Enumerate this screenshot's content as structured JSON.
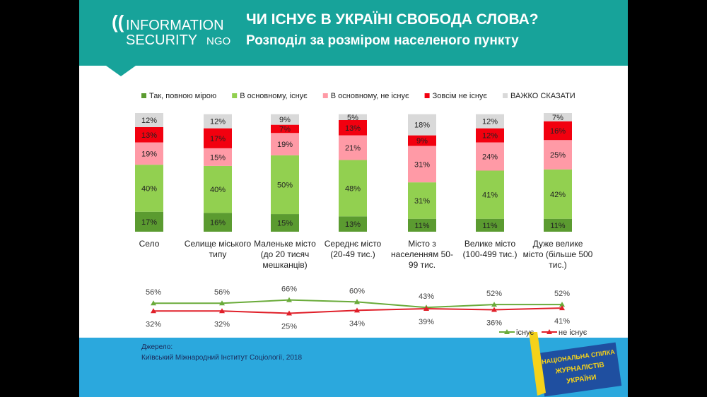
{
  "header": {
    "title": "ЧИ ІСНУЄ В УКРАЇНІ СВОБОДА СЛОВА?",
    "subtitle": "Розподіл за розміром населеного пункту"
  },
  "logo": {
    "line1": "INFORMATION",
    "line2": "SECURITY",
    "tag": "NGO"
  },
  "chart_data": [
    {
      "type": "stacked-bar",
      "categories": [
        "Село",
        "Селище міського типу",
        "Маленьке місто (до 20 тисяч мешканців)",
        "Середнє місто (20-49 тис.)",
        "Місто з населенням 50-99 тис.",
        "Велике місто (100-499 тис.)",
        "Дуже велике місто (більше 500 тис.)"
      ],
      "ylim": [
        0,
        101
      ],
      "series": [
        {
          "name": "Так, повною мірою",
          "color": "#5b9b30",
          "values": [
            17,
            16,
            15,
            13,
            11,
            11,
            11
          ],
          "value_labels": [
            "17%",
            "16%",
            "15%",
            "13%",
            "11%",
            "11%",
            "11%"
          ]
        },
        {
          "name": "В основному, існує",
          "color": "#92d050",
          "values": [
            40,
            40,
            50,
            48,
            31,
            41,
            42
          ],
          "value_labels": [
            "40%",
            "40%",
            "50%",
            "48%",
            "31%",
            "41%",
            "42%"
          ]
        },
        {
          "name": "В основному, не існує",
          "color": "#ff9aa6",
          "values": [
            19,
            15,
            19,
            21,
            31,
            24,
            25
          ],
          "value_labels": [
            "19%",
            "15%",
            "19%",
            "21%",
            "31%",
            "24%",
            "25%"
          ]
        },
        {
          "name": "Зовсім не існує",
          "color": "#f2000f",
          "values": [
            13,
            17,
            7,
            13,
            9,
            12,
            16
          ],
          "value_labels": [
            "13%",
            "17%",
            "7%",
            "13%",
            "9%",
            "12%",
            "16%"
          ]
        },
        {
          "name": "ВАЖКО СКАЗАТИ",
          "color": "#d9d9d9",
          "values": [
            12,
            12,
            9,
            5,
            18,
            12,
            7
          ],
          "value_labels": [
            "12%",
            "12%",
            "9%",
            "5%",
            "18%",
            "12%",
            "7%"
          ]
        }
      ]
    },
    {
      "type": "line",
      "ylim": [
        0,
        100
      ],
      "series": [
        {
          "name": "існує",
          "color": "#6aab3a",
          "values": [
            56,
            56,
            66,
            60,
            43,
            52,
            52
          ],
          "value_labels": [
            "56%",
            "56%",
            "66%",
            "60%",
            "43%",
            "52%",
            "52%"
          ]
        },
        {
          "name": "не існує",
          "color": "#e0202a",
          "values": [
            32,
            32,
            25,
            34,
            39,
            36,
            41
          ],
          "value_labels": [
            "32%",
            "32%",
            "25%",
            "34%",
            "39%",
            "36%",
            "41%"
          ]
        }
      ]
    }
  ],
  "source": {
    "label": "Джерело:",
    "text": "Київський Міжнародний Інститут Соціології, 2018"
  },
  "badge": [
    "НАЦІОНАЛЬНА СПІЛКА",
    "ЖУРНАЛІСТІВ",
    "УКРАЇНИ"
  ]
}
